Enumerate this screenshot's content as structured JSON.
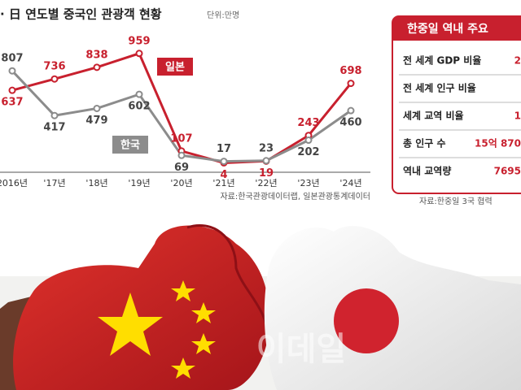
{
  "chart_data": {
    "type": "line",
    "title": "· 日 연도별 중국인 관광객 현황",
    "subtitle": "단위:만명",
    "source": "자료:한국관광데이터랩, 일본관광통계데이터",
    "categories": [
      "2016년",
      "'17년",
      "'18년",
      "'19년",
      "'20년",
      "'21년",
      "'22년",
      "'23년",
      "'24년"
    ],
    "ylim": [
      0,
      1000
    ],
    "series": [
      {
        "name": "일본",
        "color": "#c8202e",
        "values": [
          637,
          736,
          838,
          959,
          107,
          4,
          19,
          243,
          698
        ]
      },
      {
        "name": "한국",
        "color": "#8c8c8c",
        "values": [
          807,
          417,
          479,
          602,
          69,
          17,
          23,
          202,
          460
        ]
      }
    ]
  },
  "table": {
    "title": "한중일 역내 주요",
    "rows": [
      {
        "label": "전 세계 GDP 비율",
        "value": "2"
      },
      {
        "label": "전 세계 인구 비율"
      },
      {
        "label": "세계 교역 비율",
        "value": "1"
      },
      {
        "label": "총 인구 수",
        "value": "15억 870"
      },
      {
        "label": "역내 교역량",
        "value": "7695"
      }
    ],
    "source": "자료:한중일 3국 협력"
  },
  "watermark": "이데일"
}
